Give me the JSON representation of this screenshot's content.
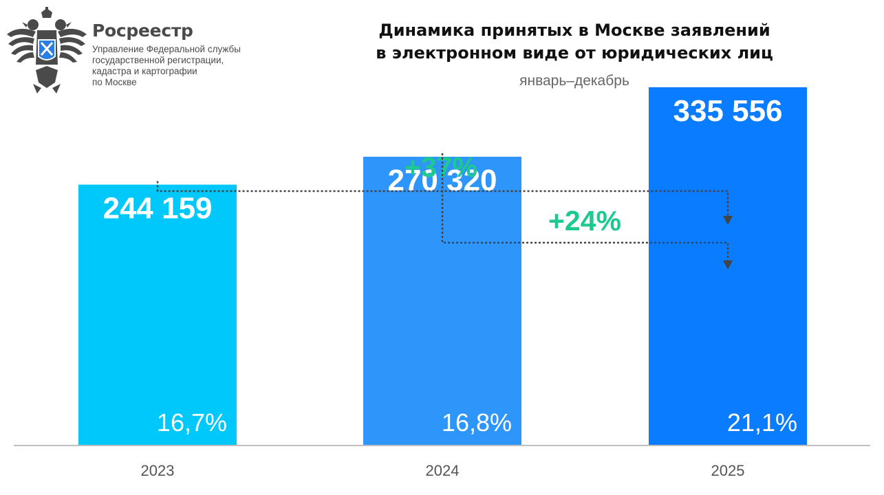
{
  "header": {
    "org_name": "Росреестр",
    "org_subtitle_lines": [
      "Управление Федеральной службы",
      "государственной регистрации,",
      "кадастра и картографии",
      "по Москве"
    ],
    "title_lines": [
      "Динамика принятых в Москве заявлений",
      "в электронном виде от юридических лиц"
    ],
    "subtitle": "январь–декабрь"
  },
  "colors": {
    "growth": "#1dc98e",
    "axis": "#bdbdbd",
    "connector": "#444444",
    "emblem": "#4a4a4a",
    "emblem_shield": "#2a7de1"
  },
  "chart_data": {
    "type": "bar",
    "categories": [
      "2023",
      "2024",
      "2025"
    ],
    "values": [
      244159,
      270320,
      335556
    ],
    "value_labels": [
      "244 159",
      "270 320",
      "335 556"
    ],
    "share_labels": [
      "16,7%",
      "16,8%",
      "21,1%"
    ],
    "bar_colors": [
      "#00c8fa",
      "#2e95fa",
      "#0a7cff"
    ],
    "ylim": [
      0,
      340000
    ],
    "growth_annotations": [
      {
        "label": "+37%",
        "from": "2023",
        "to": "2025"
      },
      {
        "label": "+24%",
        "from": "2024",
        "to": "2025"
      }
    ],
    "grid": false,
    "xlabel": "",
    "ylabel": ""
  }
}
